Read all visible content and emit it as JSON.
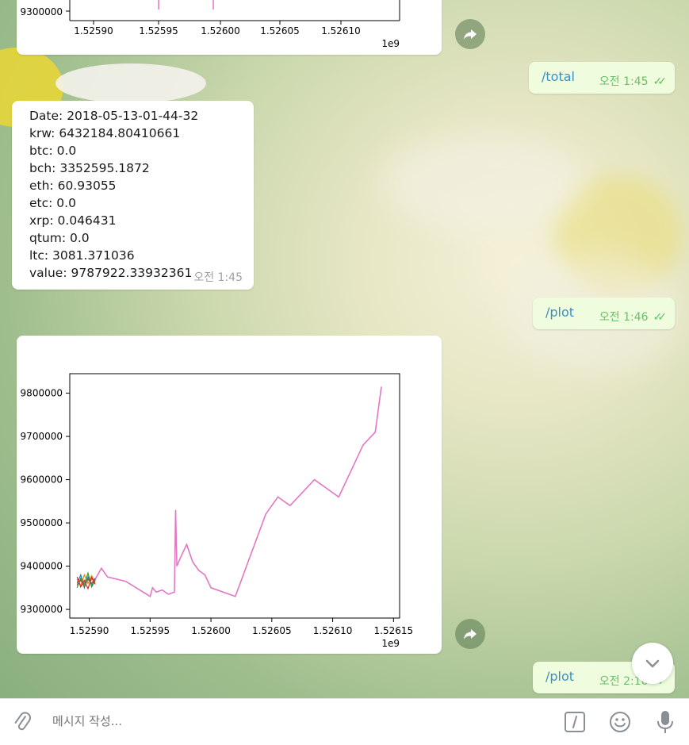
{
  "composer": {
    "placeholder": "메시지 작성..."
  },
  "messages": {
    "total_cmd": {
      "text": "/total",
      "time": "오전 1:45"
    },
    "info": {
      "lines": [
        "Date: 2018-05-13-01-44-32",
        "krw: 6432184.80410661",
        "btc: 0.0",
        "bch: 3352595.1872",
        "eth: 60.93055",
        "etc: 0.0",
        "xrp: 0.046431",
        "qtum: 0.0",
        "ltc: 3081.371036",
        "value: 9787922.33932361"
      ],
      "time": "오전 1:45"
    },
    "plot_cmd_1": {
      "text": "/plot",
      "time": "오전 1:46"
    },
    "plot_cmd_2": {
      "text": "/plot",
      "time": "오전 2:10"
    }
  },
  "top_chart": {
    "ytick": "9300000",
    "xticks": [
      "1.52590",
      "1.52595",
      "1.52600",
      "1.52605",
      "1.52610"
    ],
    "offset": "1e9"
  },
  "chart_data": {
    "type": "line",
    "title": "",
    "xlabel": "",
    "ylabel": "",
    "x_offset_label": "1e9",
    "xlim": [
      1.525884,
      1.526155
    ],
    "ylim": [
      9280000,
      9845000
    ],
    "xticks": [
      1.5259,
      1.52595,
      1.526,
      1.52605,
      1.5261,
      1.52615
    ],
    "xtick_labels": [
      "1.52590",
      "1.52595",
      "1.52600",
      "1.52605",
      "1.52610",
      "1.52615"
    ],
    "yticks": [
      9300000,
      9400000,
      9500000,
      9600000,
      9700000,
      9800000
    ],
    "ytick_labels": [
      "9300000",
      "9400000",
      "9500000",
      "9600000",
      "9700000",
      "9800000"
    ],
    "series": [
      {
        "color": "#e377c2",
        "x": [
          1.52589,
          1.525905,
          1.52591,
          1.525915,
          1.52593,
          1.52595,
          1.525952,
          1.525955,
          1.52596,
          1.525965,
          1.52597,
          1.525971,
          1.525972,
          1.525975,
          1.52598,
          1.525985,
          1.52599,
          1.525995,
          1.526,
          1.52602,
          1.526045,
          1.526055,
          1.526065,
          1.526075,
          1.526085,
          1.526095,
          1.526105,
          1.526115,
          1.526125,
          1.526135,
          1.52614
        ],
        "y": [
          9365000,
          9370000,
          9395000,
          9375000,
          9365000,
          9330000,
          9350000,
          9340000,
          9345000,
          9335000,
          9340000,
          9530000,
          9400000,
          9420000,
          9450000,
          9410000,
          9390000,
          9380000,
          9350000,
          9330000,
          9520000,
          9560000,
          9540000,
          9570000,
          9600000,
          9580000,
          9560000,
          9620000,
          9680000,
          9710000,
          9815000
        ]
      },
      {
        "color": "#1f77b4",
        "x": [
          1.52589,
          1.525893,
          1.525896,
          1.525899,
          1.525902,
          1.525905
        ],
        "y": [
          9360000,
          9380000,
          9350000,
          9375000,
          9355000,
          9370000
        ]
      },
      {
        "color": "#ff7f0e",
        "x": [
          1.52589,
          1.525893,
          1.525896,
          1.525899,
          1.525902,
          1.525905
        ],
        "y": [
          9370000,
          9355000,
          9380000,
          9360000,
          9378000,
          9362000
        ]
      },
      {
        "color": "#2ca02c",
        "x": [
          1.52589,
          1.525893,
          1.525896,
          1.525899,
          1.525902,
          1.525905
        ],
        "y": [
          9350000,
          9372000,
          9358000,
          9384000,
          9352000,
          9368000
        ]
      },
      {
        "color": "#d62728",
        "x": [
          1.52589,
          1.525893,
          1.525896,
          1.525899,
          1.525902,
          1.525905
        ],
        "y": [
          9375000,
          9352000,
          9366000,
          9348000,
          9374000,
          9358000
        ]
      },
      {
        "color": "#8c564b",
        "x": [
          1.52589,
          1.525893,
          1.525896,
          1.525899,
          1.525902,
          1.525905
        ],
        "y": [
          9356000,
          9368000,
          9352000,
          9370000,
          9360000,
          9372000
        ]
      }
    ]
  }
}
